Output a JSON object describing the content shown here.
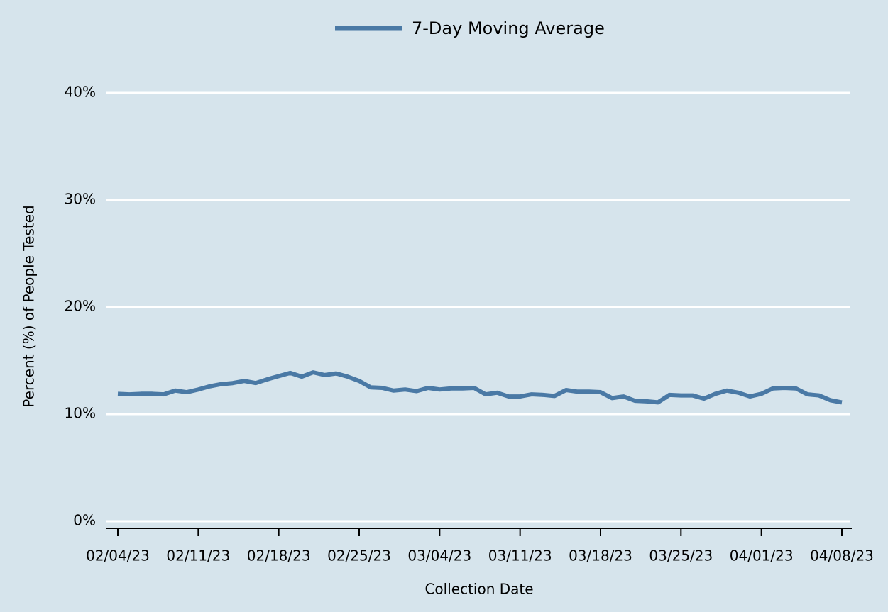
{
  "chart_data": {
    "type": "line",
    "x_label": "Collection Date",
    "y_label": "Percent (%) of People Tested",
    "x": [
      "02/04/23",
      "02/05/23",
      "02/06/23",
      "02/07/23",
      "02/08/23",
      "02/09/23",
      "02/10/23",
      "02/11/23",
      "02/12/23",
      "02/13/23",
      "02/14/23",
      "02/15/23",
      "02/16/23",
      "02/17/23",
      "02/18/23",
      "02/19/23",
      "02/20/23",
      "02/21/23",
      "02/22/23",
      "02/23/23",
      "02/24/23",
      "02/25/23",
      "02/26/23",
      "02/27/23",
      "02/28/23",
      "03/01/23",
      "03/02/23",
      "03/03/23",
      "03/04/23",
      "03/05/23",
      "03/06/23",
      "03/07/23",
      "03/08/23",
      "03/09/23",
      "03/10/23",
      "03/11/23",
      "03/12/23",
      "03/13/23",
      "03/14/23",
      "03/15/23",
      "03/16/23",
      "03/17/23",
      "03/18/23",
      "03/19/23",
      "03/20/23",
      "03/21/23",
      "03/22/23",
      "03/23/23",
      "03/24/23",
      "03/25/23",
      "03/26/23",
      "03/27/23",
      "03/28/23",
      "03/29/23",
      "03/30/23",
      "03/31/23",
      "04/01/23",
      "04/02/23",
      "04/03/23",
      "04/04/23",
      "04/05/23",
      "04/06/23",
      "04/07/23",
      "04/08/23"
    ],
    "xticks": [
      "02/04/23",
      "02/11/23",
      "02/18/23",
      "02/25/23",
      "03/04/23",
      "03/11/23",
      "03/18/23",
      "03/25/23",
      "04/01/23",
      "04/08/23"
    ],
    "series": [
      {
        "name": "7-Day Moving Average",
        "color": "#4a79a5",
        "values": [
          11.9,
          11.85,
          11.9,
          11.9,
          11.85,
          12.2,
          12.05,
          12.3,
          12.6,
          12.8,
          12.9,
          13.1,
          12.9,
          13.25,
          13.55,
          13.85,
          13.5,
          13.9,
          13.65,
          13.8,
          13.5,
          13.1,
          12.5,
          12.45,
          12.2,
          12.3,
          12.15,
          12.45,
          12.3,
          12.4,
          12.4,
          12.45,
          11.85,
          12.0,
          11.65,
          11.65,
          11.85,
          11.8,
          11.7,
          12.25,
          12.1,
          12.1,
          12.05,
          11.5,
          11.65,
          11.25,
          11.2,
          11.1,
          11.8,
          11.75,
          11.75,
          11.45,
          11.9,
          12.2,
          12.0,
          11.65,
          11.9,
          12.4,
          12.45,
          12.4,
          11.85,
          11.75,
          11.3,
          11.1
        ]
      }
    ],
    "ylim": [
      0,
      40
    ],
    "yticks": [
      {
        "value": 0,
        "label": "0%"
      },
      {
        "value": 10,
        "label": "10%"
      },
      {
        "value": 20,
        "label": "20%"
      },
      {
        "value": 30,
        "label": "30%"
      },
      {
        "value": 40,
        "label": "40%"
      }
    ],
    "grid": true,
    "legend": "top"
  }
}
